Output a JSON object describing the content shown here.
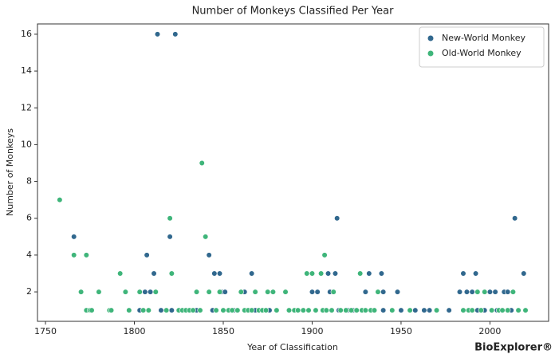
{
  "chart_data": {
    "type": "scatter",
    "title": "Number of Monkeys Classified Per Year",
    "x_label": "Year of Classification",
    "y_label": "Number of Monkeys",
    "watermark": "BioExplorer®",
    "xlim": [
      1745.5,
      2033
    ],
    "ylim": [
      0.4,
      16.56
    ],
    "xticks": [
      1750,
      1800,
      1850,
      1900,
      1950,
      2000
    ],
    "yticks": [
      2,
      4,
      6,
      8,
      10,
      12,
      14,
      16
    ],
    "grid": false,
    "legend": "upper right",
    "series": [
      {
        "name": "New-World Monkey",
        "color": "#31688e",
        "x": [
          1766,
          1807,
          1811,
          1809,
          1806,
          1813,
          1823,
          1820,
          1815,
          1821,
          1803,
          1842,
          1845,
          1848,
          1849,
          1851,
          1844,
          1866,
          1862,
          1868,
          1876,
          1900,
          1903,
          1909,
          1910,
          1913,
          1914,
          1915,
          1920,
          1930,
          1932,
          1939,
          1940,
          1940,
          1948,
          1950,
          1963,
          1966,
          1977,
          1983,
          1985,
          1987,
          1990,
          1992,
          1993,
          2000,
          2003,
          2004,
          2008,
          2010,
          2014,
          2019,
          2012,
          1958,
          1835,
          1856,
          1890,
          1923,
          1997
        ],
        "values": [
          5,
          4,
          3,
          2,
          2,
          16,
          16,
          5,
          1,
          1,
          1,
          4,
          3,
          3,
          2,
          2,
          1,
          3,
          2,
          1,
          1,
          2,
          2,
          3,
          2,
          3,
          6,
          1,
          1,
          2,
          3,
          3,
          2,
          1,
          2,
          1,
          1,
          1,
          1,
          2,
          3,
          2,
          2,
          3,
          1,
          2,
          2,
          1,
          2,
          2,
          6,
          3,
          1,
          1,
          1,
          1,
          1,
          1,
          1
        ]
      },
      {
        "name": "Old-World Monkey",
        "color": "#3fb57a",
        "x": [
          1758,
          1766,
          1770,
          1773,
          1773,
          1775,
          1776,
          1780,
          1786,
          1787,
          1792,
          1795,
          1797,
          1803,
          1805,
          1808,
          1812,
          1820,
          1821,
          1818,
          1825,
          1827,
          1829,
          1831,
          1833,
          1835,
          1837,
          1838,
          1840,
          1842,
          1846,
          1848,
          1850,
          1853,
          1855,
          1858,
          1860,
          1862,
          1864,
          1866,
          1868,
          1870,
          1872,
          1874,
          1875,
          1878,
          1880,
          1885,
          1887,
          1890,
          1892,
          1895,
          1897,
          1898,
          1900,
          1902,
          1905,
          1907,
          1906,
          1908,
          1911,
          1912,
          1916,
          1919,
          1922,
          1925,
          1927,
          1928,
          1930,
          1933,
          1935,
          1937,
          1945,
          1955,
          1970,
          1985,
          1988,
          1990,
          1993,
          1995,
          1997,
          2001,
          2005,
          2007,
          2010,
          2013,
          2016,
          2020
        ],
        "values": [
          7,
          4,
          2,
          4,
          1,
          1,
          1,
          2,
          1,
          1,
          3,
          2,
          1,
          2,
          1,
          1,
          2,
          6,
          3,
          1,
          1,
          1,
          1,
          1,
          1,
          2,
          1,
          9,
          5,
          2,
          1,
          2,
          1,
          1,
          1,
          1,
          2,
          1,
          1,
          1,
          2,
          1,
          1,
          1,
          2,
          2,
          1,
          2,
          1,
          1,
          1,
          1,
          3,
          1,
          3,
          1,
          3,
          4,
          1,
          1,
          1,
          2,
          1,
          1,
          1,
          1,
          3,
          1,
          1,
          1,
          1,
          2,
          1,
          1,
          1,
          1,
          1,
          1,
          2,
          1,
          2,
          1,
          1,
          1,
          1,
          2,
          1,
          1
        ]
      }
    ]
  }
}
